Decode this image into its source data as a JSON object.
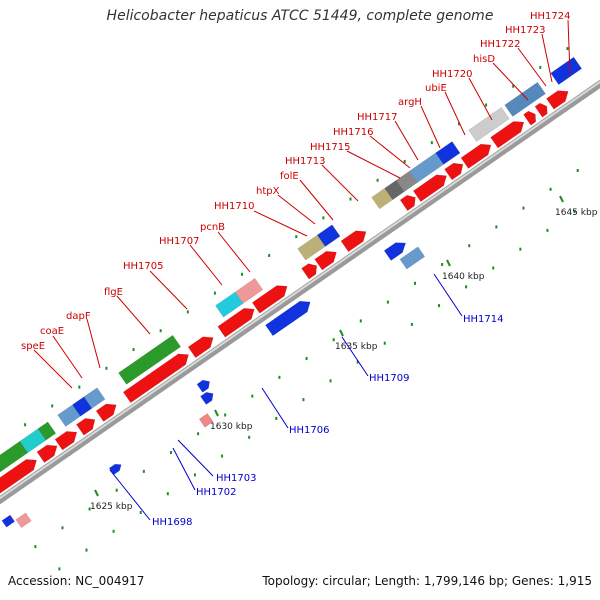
{
  "title": "Helicobacter hepaticus ATCC 51449, complete genome",
  "footer": {
    "accession": "Accession: NC_004917",
    "topology": "Topology: circular; Length: 1,799,146 bp; Genes: 1,915"
  },
  "ticks": [
    "1625 kbp",
    "1630 kbp",
    "1635 kbp",
    "1640 kbp",
    "1645 kbp"
  ],
  "top_labels": [
    "speE",
    "coaE",
    "dapF",
    "flgE",
    "HH1705",
    "HH1707",
    "pcnB",
    "HH1710",
    "htpX",
    "folE",
    "HH1713",
    "HH1715",
    "HH1716",
    "HH1717",
    "argH",
    "ubiE",
    "HH1720",
    "hisD",
    "HH1722",
    "HH1723",
    "HH1724"
  ],
  "bottom_labels": [
    "HH1698",
    "HH1702",
    "HH1703",
    "HH1706",
    "HH1709",
    "HH1714"
  ],
  "colors": {
    "forward_cds": "#ee1111",
    "reverse_cds": "#1133dd",
    "top_label": "#cc0000",
    "bottom_label": "#0000cc",
    "backbone": "#999999"
  }
}
